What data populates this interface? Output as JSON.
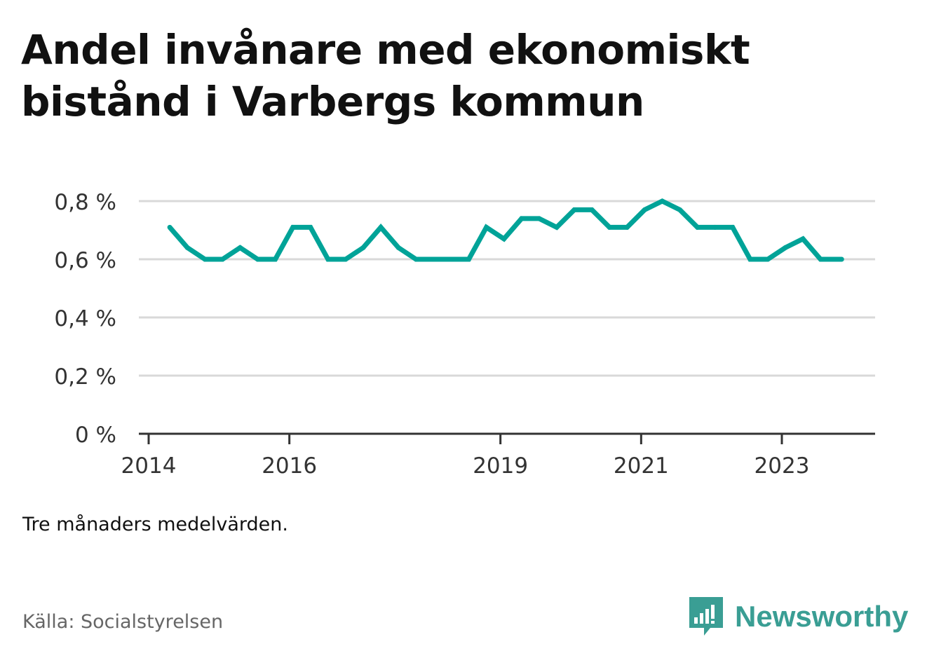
{
  "title": "Andel invånare med ekonomiskt bistånd i Varbergs kommun",
  "note": "Tre månaders medelvärden.",
  "source": "Källa: Socialstyrelsen",
  "brand": {
    "name": "Newsworthy",
    "color": "#3a9e94",
    "icon": "newsworthy-logo-icon"
  },
  "chart_data": {
    "type": "line",
    "title": "Andel invånare med ekonomiskt bistånd i Varbergs kommun",
    "xlabel": "",
    "ylabel": "",
    "xlim": [
      2014,
      2024.4
    ],
    "ylim": [
      0,
      0.8
    ],
    "y_ticks": [
      0,
      0.2,
      0.4,
      0.6,
      0.8
    ],
    "y_tick_labels": [
      "0 %",
      "0,2 %",
      "0,4 %",
      "0,6 %",
      "0,8 %"
    ],
    "x_ticks": [
      2014,
      2016,
      2019,
      2021,
      2023
    ],
    "x_tick_labels": [
      "2014",
      "2016",
      "2019",
      "2021",
      "2023"
    ],
    "grid": true,
    "series": [
      {
        "name": "",
        "color": "#00a398",
        "x": [
          2014.3,
          2014.55,
          2014.8,
          2015.05,
          2015.3,
          2015.55,
          2015.8,
          2016.05,
          2016.3,
          2016.55,
          2016.8,
          2017.05,
          2017.3,
          2017.55,
          2017.8,
          2018.05,
          2018.3,
          2018.55,
          2018.8,
          2019.05,
          2019.3,
          2019.55,
          2019.8,
          2020.05,
          2020.3,
          2020.55,
          2020.8,
          2021.05,
          2021.3,
          2021.55,
          2021.8,
          2022.05,
          2022.3,
          2022.55,
          2022.8,
          2023.05,
          2023.3,
          2023.55,
          2023.85
        ],
        "values": [
          0.71,
          0.64,
          0.6,
          0.6,
          0.64,
          0.6,
          0.6,
          0.71,
          0.71,
          0.6,
          0.6,
          0.64,
          0.71,
          0.64,
          0.6,
          0.6,
          0.6,
          0.6,
          0.71,
          0.67,
          0.74,
          0.74,
          0.71,
          0.77,
          0.77,
          0.71,
          0.71,
          0.77,
          0.8,
          0.77,
          0.71,
          0.71,
          0.71,
          0.6,
          0.6,
          0.64,
          0.67,
          0.6,
          0.6
        ]
      }
    ]
  }
}
